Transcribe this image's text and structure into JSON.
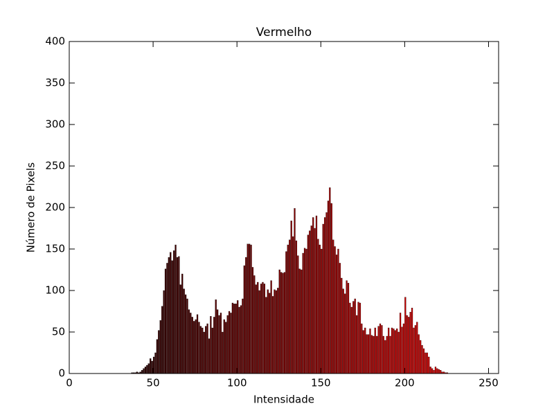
{
  "chart_data": {
    "type": "bar",
    "title": "Vermelho",
    "x_label": "Intensidade",
    "y_label": "Número de Pixels",
    "x": [
      0,
      1,
      2,
      3,
      4,
      5,
      6,
      7,
      8,
      9,
      10,
      11,
      12,
      13,
      14,
      15,
      16,
      17,
      18,
      19,
      20,
      21,
      22,
      23,
      24,
      25,
      26,
      27,
      28,
      29,
      30,
      31,
      32,
      33,
      34,
      35,
      36,
      37,
      38,
      39,
      40,
      41,
      42,
      43,
      44,
      45,
      46,
      47,
      48,
      49,
      50,
      51,
      52,
      53,
      54,
      55,
      56,
      57,
      58,
      59,
      60,
      61,
      62,
      63,
      64,
      65,
      66,
      67,
      68,
      69,
      70,
      71,
      72,
      73,
      74,
      75,
      76,
      77,
      78,
      79,
      80,
      81,
      82,
      83,
      84,
      85,
      86,
      87,
      88,
      89,
      90,
      91,
      92,
      93,
      94,
      95,
      96,
      97,
      98,
      99,
      100,
      101,
      102,
      103,
      104,
      105,
      106,
      107,
      108,
      109,
      110,
      111,
      112,
      113,
      114,
      115,
      116,
      117,
      118,
      119,
      120,
      121,
      122,
      123,
      124,
      125,
      126,
      127,
      128,
      129,
      130,
      131,
      132,
      133,
      134,
      135,
      136,
      137,
      138,
      139,
      140,
      141,
      142,
      143,
      144,
      145,
      146,
      147,
      148,
      149,
      150,
      151,
      152,
      153,
      154,
      155,
      156,
      157,
      158,
      159,
      160,
      161,
      162,
      163,
      164,
      165,
      166,
      167,
      168,
      169,
      170,
      171,
      172,
      173,
      174,
      175,
      176,
      177,
      178,
      179,
      180,
      181,
      182,
      183,
      184,
      185,
      186,
      187,
      188,
      189,
      190,
      191,
      192,
      193,
      194,
      195,
      196,
      197,
      198,
      199,
      200,
      201,
      202,
      203,
      204,
      205,
      206,
      207,
      208,
      209,
      210,
      211,
      212,
      213,
      214,
      215,
      216,
      217,
      218,
      219,
      220,
      221,
      222,
      223,
      224,
      225,
      226,
      227,
      228,
      229,
      230,
      231,
      232,
      233,
      234,
      235,
      236,
      237,
      238,
      239,
      240,
      241,
      242,
      243,
      244,
      245,
      246,
      247,
      248,
      249,
      250,
      251,
      252,
      253,
      254,
      255
    ],
    "values": [
      0,
      0,
      0,
      0,
      0,
      0,
      0,
      0,
      0,
      0,
      0,
      0,
      0,
      0,
      0,
      0,
      0,
      0,
      0,
      0,
      0,
      0,
      0,
      0,
      0,
      0,
      0,
      0,
      0,
      0,
      0,
      0,
      0,
      0,
      0,
      0,
      0,
      1,
      1,
      1,
      2,
      1,
      2,
      4,
      6,
      8,
      10,
      12,
      18,
      15,
      20,
      25,
      41,
      52,
      64,
      81,
      100,
      126,
      133,
      140,
      146,
      136,
      148,
      155,
      140,
      141,
      107,
      120,
      102,
      95,
      90,
      77,
      73,
      68,
      63,
      65,
      71,
      62,
      57,
      55,
      50,
      57,
      60,
      42,
      69,
      55,
      68,
      89,
      77,
      70,
      73,
      50,
      65,
      62,
      70,
      75,
      73,
      85,
      84,
      84,
      88,
      80,
      82,
      90,
      130,
      140,
      156,
      156,
      155,
      128,
      118,
      107,
      110,
      100,
      108,
      110,
      108,
      92,
      101,
      97,
      112,
      93,
      101,
      100,
      103,
      125,
      122,
      121,
      122,
      147,
      155,
      161,
      184,
      165,
      199,
      160,
      142,
      126,
      125,
      145,
      151,
      150,
      167,
      172,
      178,
      188,
      175,
      190,
      162,
      155,
      150,
      180,
      188,
      194,
      208,
      224,
      205,
      161,
      153,
      143,
      150,
      133,
      115,
      102,
      96,
      112,
      109,
      85,
      80,
      87,
      90,
      70,
      86,
      85,
      60,
      52,
      55,
      47,
      47,
      54,
      46,
      45,
      55,
      45,
      57,
      60,
      58,
      45,
      40,
      45,
      55,
      45,
      55,
      54,
      52,
      54,
      50,
      73,
      56,
      60,
      92,
      70,
      68,
      74,
      79,
      55,
      58,
      62,
      47,
      40,
      34,
      30,
      25,
      25,
      20,
      8,
      6,
      4,
      8,
      6,
      5,
      4,
      2,
      2,
      1,
      1,
      0,
      0,
      0,
      0,
      0,
      0,
      0,
      0,
      0,
      0,
      0,
      0,
      0,
      0,
      0,
      0,
      0,
      0,
      0,
      0,
      0,
      0,
      0,
      0,
      0,
      0,
      0,
      0,
      0,
      0
    ],
    "colormap": [
      "#000000",
      "#ff0000"
    ],
    "xlim": [
      0,
      256
    ],
    "ylim": [
      0,
      400
    ],
    "xticks": [
      0,
      50,
      100,
      150,
      200,
      250
    ],
    "yticks": [
      0,
      50,
      100,
      150,
      200,
      250,
      300,
      350,
      400
    ]
  }
}
